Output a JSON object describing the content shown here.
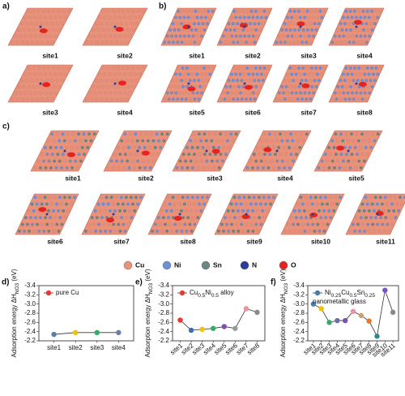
{
  "structures": [
    {
      "label": "a)",
      "sites": [
        "site1",
        "site2",
        "site3",
        "site4"
      ]
    },
    {
      "label": "b)",
      "sites": [
        "site1",
        "site2",
        "site3",
        "site4",
        "site5",
        "site6",
        "site7",
        "site8"
      ]
    },
    {
      "label": "c)",
      "sites": [
        "site1",
        "site2",
        "site3",
        "site4",
        "site5",
        "site6",
        "site7",
        "site8",
        "site9",
        "site10",
        "site11"
      ]
    }
  ],
  "elements": [
    {
      "name": "Cu",
      "color": "#e8917b"
    },
    {
      "name": "Ni",
      "color": "#6f8fd6"
    },
    {
      "name": "Sn",
      "color": "#6b8683"
    },
    {
      "name": "N",
      "color": "#2c3a9c"
    },
    {
      "name": "O",
      "color": "#e52421"
    }
  ],
  "chart_data": [
    {
      "type": "line",
      "panel_label": "d)",
      "y_label_parts": [
        "Adsorption energy ΔH",
        "NO3",
        " (eV)"
      ],
      "legend_parts": [
        "pure Cu"
      ],
      "legend_color": "#e53935",
      "categories": [
        "site1",
        "site2",
        "site3",
        "site4"
      ],
      "values": [
        -2.34,
        -2.38,
        -2.38,
        -2.38
      ],
      "colors": [
        "#5b7fa6",
        "#f2c200",
        "#2fae6a",
        "#6f7fa0"
      ],
      "ylim": [
        -2.2,
        -3.4
      ],
      "yticks": [
        -3.4,
        -3.2,
        {
          "value": -3.0,
          "label": "-3.0"
        },
        -2.8,
        -2.6,
        -2.4,
        -2.2
      ],
      "x_rotated": false
    },
    {
      "type": "line",
      "panel_label": "e)",
      "y_label_parts": [
        "Adsorption energy ΔH",
        "NO3",
        " (eV)"
      ],
      "legend_parts": [
        "Cu",
        "0.5",
        "Ni",
        "0.5",
        " alloy"
      ],
      "legend_color": "#e53935",
      "categories": [
        "site1",
        "site2",
        "site3",
        "site4",
        "site5",
        "site6",
        "site7",
        "site8"
      ],
      "values": [
        -2.65,
        -2.43,
        -2.45,
        -2.47,
        -2.51,
        -2.47,
        -2.9,
        -2.82
      ],
      "colors": [
        "#e53935",
        "#3b6db5",
        "#f2c200",
        "#2fae6a",
        "#7b52a8",
        "#9a9a9a",
        "#f28fa0",
        "#8a8a8a"
      ],
      "ylim": [
        -2.2,
        -3.4
      ],
      "yticks": [
        -3.4,
        -3.2,
        {
          "value": -3.0,
          "label": "-3.0"
        },
        -2.8,
        -2.6,
        -2.4,
        -2.2
      ],
      "x_rotated": true
    },
    {
      "type": "line",
      "panel_label": "f)",
      "y_label_parts": [
        "Adsorption energy ΔH",
        "NO3",
        " (eV)"
      ],
      "legend_parts": [
        "Ni",
        "0.25",
        "Cu",
        "0.5",
        "Sn",
        "0.25"
      ],
      "legend_note": "nanometallic glass",
      "legend_color": "#4a7ea8",
      "categories": [
        "site1",
        "site2",
        "site3",
        "site4",
        "site5",
        "site6",
        "site7",
        "site8",
        "site9",
        "site10",
        "site11"
      ],
      "values": [
        -3.0,
        -2.9,
        -2.6,
        -2.64,
        -2.64,
        -2.84,
        -2.75,
        -2.63,
        -2.3,
        -3.3,
        -2.82
      ],
      "colors": [
        "#4a7ea8",
        "#f2c200",
        "#2fae6a",
        "#6f6fa8",
        "#7b52a8",
        "#f28fa0",
        "#c9a070",
        "#e07a30",
        "#2e8b8b",
        "#7b52c8",
        "#8a8a8a"
      ],
      "ylim": [
        -2.2,
        -3.4
      ],
      "yticks": [
        -3.4,
        -3.2,
        {
          "value": -3.0,
          "label": "-3.0"
        },
        -2.8,
        -2.6,
        -2.4,
        -2.2
      ],
      "x_rotated": true
    }
  ]
}
